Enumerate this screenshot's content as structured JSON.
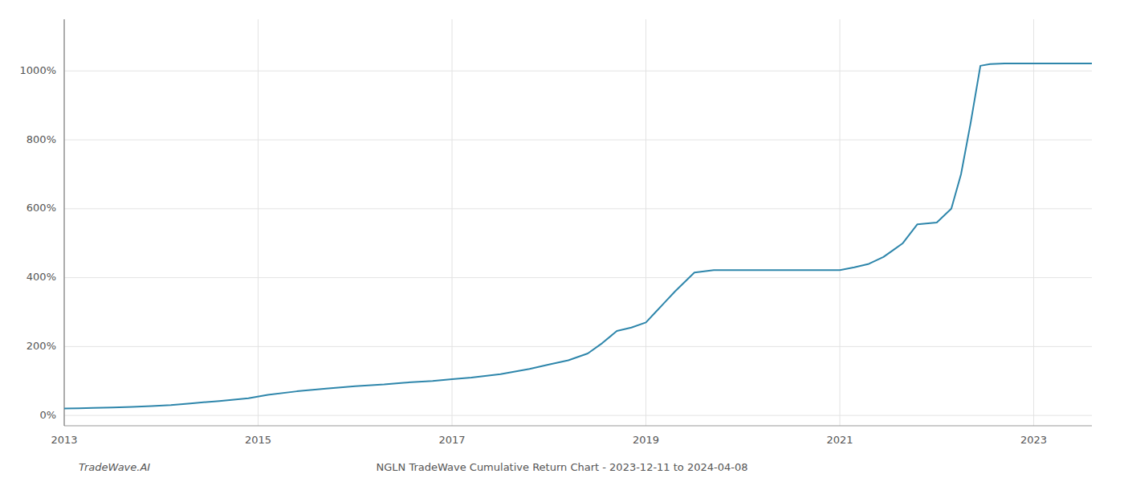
{
  "chart_data": {
    "type": "line",
    "title": "NGLN TradeWave Cumulative Return Chart - 2023-12-11 to 2024-04-08",
    "annotations": [
      "TradeWave.AI"
    ],
    "color": "#2e86ab",
    "grid": true,
    "xlim": [
      2013.0,
      2023.6
    ],
    "xticks": [
      2013,
      2015,
      2017,
      2019,
      2021,
      2023
    ],
    "ylim": [
      -0.3,
      11.5
    ],
    "yticks": [
      {
        "value": 0,
        "label": "0%"
      },
      {
        "value": 2,
        "label": "200%"
      },
      {
        "value": 4,
        "label": "400%"
      },
      {
        "value": 6,
        "label": "600%"
      },
      {
        "value": 8,
        "label": "800%"
      },
      {
        "value": 10,
        "label": "1000%"
      }
    ],
    "x": [
      2013.0,
      2013.15,
      2013.3,
      2013.5,
      2013.7,
      2013.9,
      2014.1,
      2014.3,
      2014.6,
      2014.9,
      2015.1,
      2015.4,
      2015.7,
      2016.0,
      2016.3,
      2016.5,
      2016.8,
      2017.0,
      2017.2,
      2017.5,
      2017.8,
      2018.0,
      2018.2,
      2018.4,
      2018.55,
      2018.7,
      2018.85,
      2019.0,
      2019.1,
      2019.2,
      2019.3,
      2019.5,
      2019.7,
      2019.9,
      2020.1,
      2020.3,
      2020.5,
      2020.7,
      2020.9,
      2021.0,
      2021.15,
      2021.3,
      2021.45,
      2021.55,
      2021.65,
      2021.8,
      2022.0,
      2022.15,
      2022.25,
      2022.35,
      2022.45,
      2022.55,
      2022.7,
      2022.9,
      2023.0,
      2023.2,
      2023.4,
      2023.6
    ],
    "values": [
      0.2,
      0.21,
      0.22,
      0.23,
      0.25,
      0.27,
      0.3,
      0.35,
      0.42,
      0.5,
      0.6,
      0.7,
      0.78,
      0.85,
      0.9,
      0.95,
      1.0,
      1.05,
      1.1,
      1.2,
      1.35,
      1.48,
      1.6,
      1.8,
      2.1,
      2.45,
      2.55,
      2.7,
      3.0,
      3.3,
      3.6,
      4.15,
      4.22,
      4.22,
      4.22,
      4.22,
      4.22,
      4.22,
      4.22,
      4.22,
      4.3,
      4.4,
      4.6,
      4.8,
      5.0,
      5.55,
      5.6,
      6.0,
      7.0,
      8.5,
      10.15,
      10.2,
      10.22,
      10.22,
      10.22,
      10.22,
      10.22,
      10.22
    ]
  }
}
